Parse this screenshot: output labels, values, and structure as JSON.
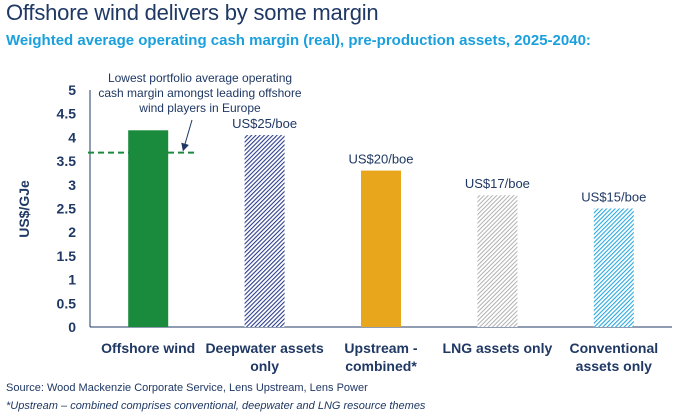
{
  "header": {
    "title": "Offshore wind delivers by some margin",
    "subtitle": "Weighted average operating cash margin (real), pre-production assets, 2025-2040:"
  },
  "chart_data": {
    "type": "bar",
    "categories": [
      [
        "Offshore wind"
      ],
      [
        "Deepwater assets",
        "only"
      ],
      [
        "Upstream -",
        "combined*"
      ],
      [
        "LNG assets only"
      ],
      [
        "Conventional",
        "assets only"
      ]
    ],
    "values": [
      4.15,
      4.05,
      3.3,
      2.78,
      2.5
    ],
    "data_labels": [
      "",
      "US$25/boe",
      "US$20/boe",
      "US$17/boe",
      "US$15/boe"
    ],
    "styles": [
      "solid",
      "hatch-navy",
      "solid",
      "hatch-grey",
      "hatch-blue"
    ],
    "colors": {
      "offshore": "#1a8a3c",
      "deepwater": "#2b3d8c",
      "upstream": "#e8a61c",
      "lng": "#a8a8a8",
      "conventional": "#2aa8df",
      "reference_line": "#1a8a3c",
      "axis_text": "#1f3864"
    },
    "ylabel": "US$/GJe",
    "ylim": [
      0,
      5
    ],
    "yticks": [
      "0",
      "0.5",
      "1",
      "1.5",
      "2",
      "2.5",
      "3",
      "3.5",
      "4",
      "4.5",
      "5"
    ],
    "reference_line": {
      "value": 3.68,
      "label": [
        "Lowest portfolio average operating",
        "cash margin amongst leading offshore",
        "wind players in Europe"
      ]
    },
    "grid": false
  },
  "footer": {
    "source": "Source: Wood Mackenzie Corporate Service, Lens Upstream, Lens Power",
    "note": "*Upstream – combined comprises conventional, deepwater and LNG resource themes"
  }
}
